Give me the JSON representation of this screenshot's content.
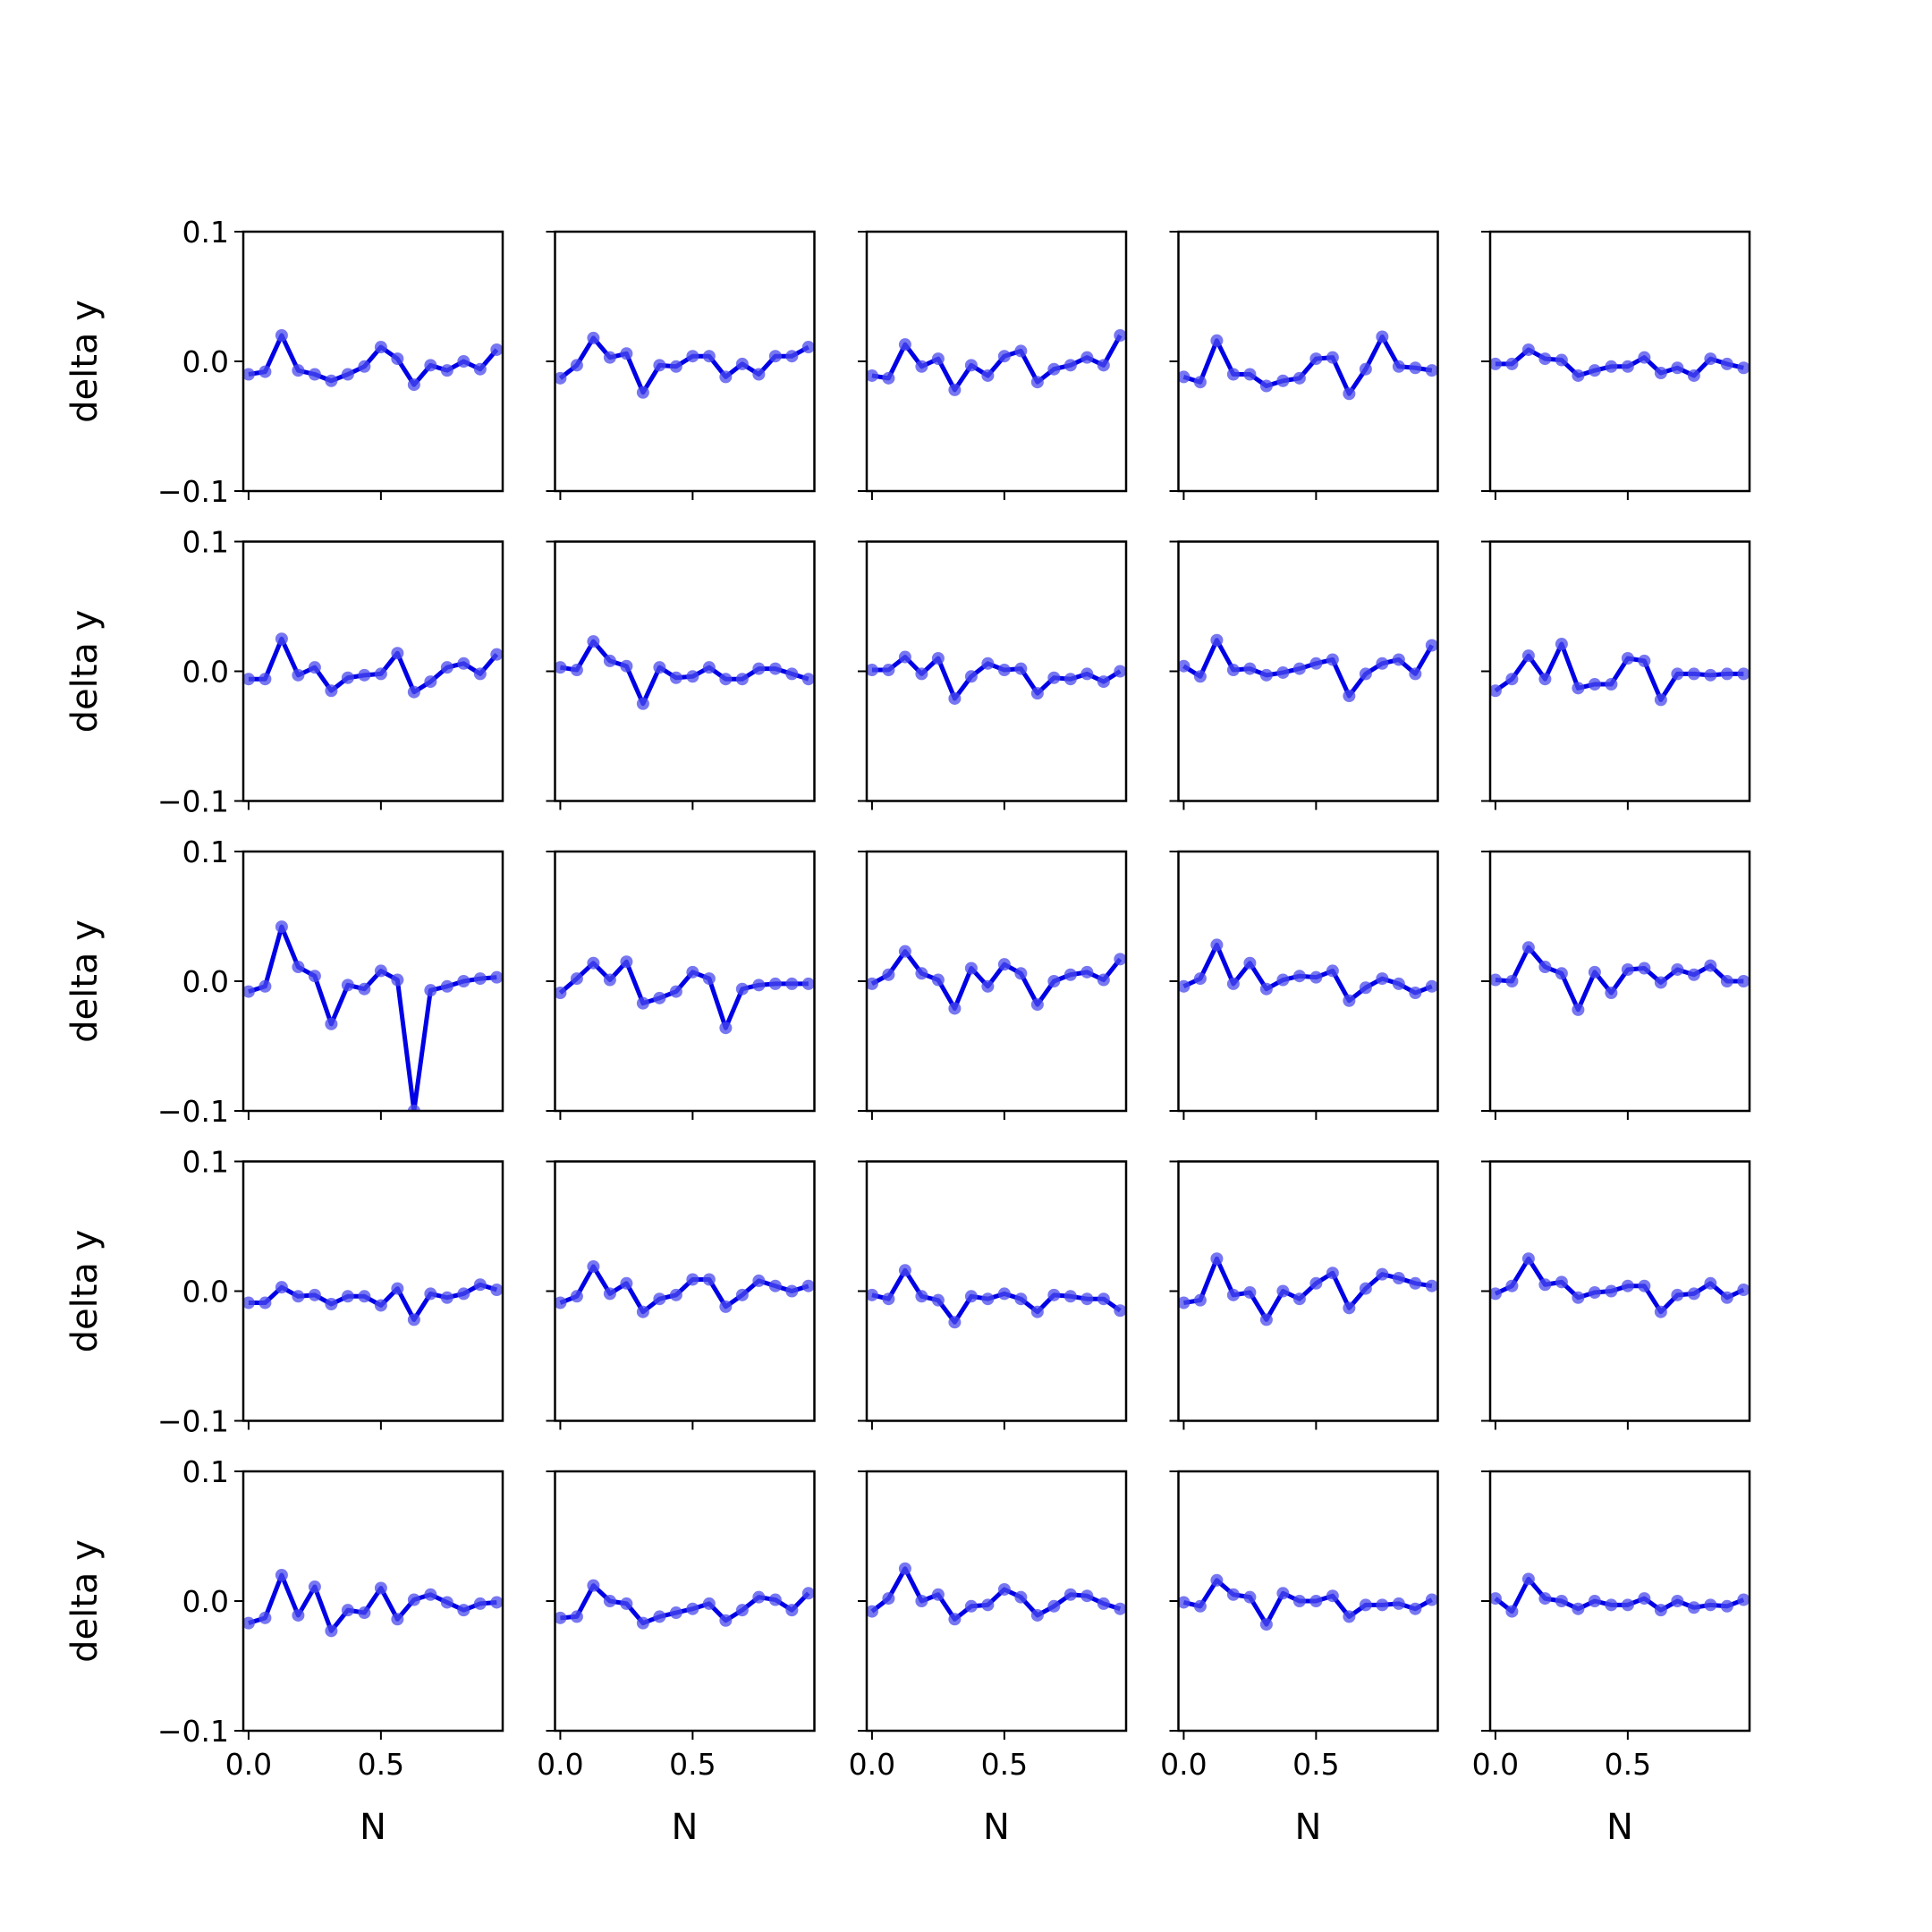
{
  "figure": {
    "rows": 5,
    "cols": 5,
    "line_color": "#0000e6",
    "marker_color": "#4a4aec"
  },
  "chart_data": [
    {
      "type": "line",
      "panel": "r1c1",
      "xlabel": "",
      "ylabel": "delta y",
      "xlim": [
        -0.02,
        0.96
      ],
      "ylim": [
        -0.1,
        0.1
      ],
      "x": [
        0.0,
        0.0625,
        0.125,
        0.1875,
        0.25,
        0.3125,
        0.375,
        0.4375,
        0.5,
        0.5625,
        0.625,
        0.6875,
        0.75,
        0.8125,
        0.875,
        0.9375
      ],
      "values": [
        -0.01,
        -0.008,
        0.02,
        -0.007,
        -0.01,
        -0.015,
        -0.01,
        -0.004,
        0.011,
        0.002,
        -0.018,
        -0.003,
        -0.007,
        0.0,
        -0.006,
        0.009
      ]
    },
    {
      "type": "line",
      "panel": "r1c2",
      "xlabel": "",
      "ylabel": "",
      "xlim": [
        -0.02,
        0.96
      ],
      "ylim": [
        -0.1,
        0.1
      ],
      "x": [
        0.0,
        0.0625,
        0.125,
        0.1875,
        0.25,
        0.3125,
        0.375,
        0.4375,
        0.5,
        0.5625,
        0.625,
        0.6875,
        0.75,
        0.8125,
        0.875,
        0.9375
      ],
      "values": [
        -0.013,
        -0.003,
        0.018,
        0.003,
        0.006,
        -0.024,
        -0.003,
        -0.004,
        0.004,
        0.004,
        -0.012,
        -0.002,
        -0.01,
        0.004,
        0.004,
        0.011
      ]
    },
    {
      "type": "line",
      "panel": "r1c3",
      "xlabel": "",
      "ylabel": "",
      "xlim": [
        -0.02,
        0.96
      ],
      "ylim": [
        -0.1,
        0.1
      ],
      "x": [
        0.0,
        0.0625,
        0.125,
        0.1875,
        0.25,
        0.3125,
        0.375,
        0.4375,
        0.5,
        0.5625,
        0.625,
        0.6875,
        0.75,
        0.8125,
        0.875,
        0.9375
      ],
      "values": [
        -0.011,
        -0.013,
        0.013,
        -0.004,
        0.002,
        -0.022,
        -0.003,
        -0.011,
        0.004,
        0.008,
        -0.016,
        -0.006,
        -0.003,
        0.003,
        -0.003,
        0.02
      ]
    },
    {
      "type": "line",
      "panel": "r1c4",
      "xlabel": "",
      "ylabel": "",
      "xlim": [
        -0.02,
        0.96
      ],
      "ylim": [
        -0.1,
        0.1
      ],
      "x": [
        0.0,
        0.0625,
        0.125,
        0.1875,
        0.25,
        0.3125,
        0.375,
        0.4375,
        0.5,
        0.5625,
        0.625,
        0.6875,
        0.75,
        0.8125,
        0.875,
        0.9375
      ],
      "values": [
        -0.012,
        -0.016,
        0.016,
        -0.01,
        -0.01,
        -0.019,
        -0.015,
        -0.013,
        0.002,
        0.003,
        -0.025,
        -0.006,
        0.019,
        -0.004,
        -0.005,
        -0.007
      ]
    },
    {
      "type": "line",
      "panel": "r1c5",
      "xlabel": "",
      "ylabel": "",
      "xlim": [
        -0.02,
        0.96
      ],
      "ylim": [
        -0.1,
        0.1
      ],
      "x": [
        0.0,
        0.0625,
        0.125,
        0.1875,
        0.25,
        0.3125,
        0.375,
        0.4375,
        0.5,
        0.5625,
        0.625,
        0.6875,
        0.75,
        0.8125,
        0.875,
        0.9375
      ],
      "values": [
        -0.002,
        -0.002,
        0.009,
        0.002,
        0.001,
        -0.011,
        -0.007,
        -0.004,
        -0.004,
        0.003,
        -0.009,
        -0.005,
        -0.011,
        0.002,
        -0.002,
        -0.005
      ]
    },
    {
      "type": "line",
      "panel": "r2c1",
      "xlabel": "",
      "ylabel": "delta y",
      "xlim": [
        -0.02,
        0.96
      ],
      "ylim": [
        -0.1,
        0.1
      ],
      "x": [
        0.0,
        0.0625,
        0.125,
        0.1875,
        0.25,
        0.3125,
        0.375,
        0.4375,
        0.5,
        0.5625,
        0.625,
        0.6875,
        0.75,
        0.8125,
        0.875,
        0.9375
      ],
      "values": [
        -0.006,
        -0.006,
        0.025,
        -0.003,
        0.003,
        -0.015,
        -0.005,
        -0.003,
        -0.002,
        0.014,
        -0.016,
        -0.008,
        0.003,
        0.006,
        -0.002,
        0.013
      ]
    },
    {
      "type": "line",
      "panel": "r2c2",
      "xlabel": "",
      "ylabel": "",
      "xlim": [
        -0.02,
        0.96
      ],
      "ylim": [
        -0.1,
        0.1
      ],
      "x": [
        0.0,
        0.0625,
        0.125,
        0.1875,
        0.25,
        0.3125,
        0.375,
        0.4375,
        0.5,
        0.5625,
        0.625,
        0.6875,
        0.75,
        0.8125,
        0.875,
        0.9375
      ],
      "values": [
        0.003,
        0.001,
        0.023,
        0.008,
        0.004,
        -0.025,
        0.003,
        -0.005,
        -0.004,
        0.003,
        -0.006,
        -0.006,
        0.002,
        0.002,
        -0.002,
        -0.006
      ]
    },
    {
      "type": "line",
      "panel": "r2c3",
      "xlabel": "",
      "ylabel": "",
      "xlim": [
        -0.02,
        0.96
      ],
      "ylim": [
        -0.1,
        0.1
      ],
      "x": [
        0.0,
        0.0625,
        0.125,
        0.1875,
        0.25,
        0.3125,
        0.375,
        0.4375,
        0.5,
        0.5625,
        0.625,
        0.6875,
        0.75,
        0.8125,
        0.875,
        0.9375
      ],
      "values": [
        0.001,
        0.001,
        0.011,
        -0.002,
        0.01,
        -0.021,
        -0.004,
        0.006,
        0.001,
        0.002,
        -0.017,
        -0.005,
        -0.006,
        -0.002,
        -0.008,
        0.0
      ]
    },
    {
      "type": "line",
      "panel": "r2c4",
      "xlabel": "",
      "ylabel": "",
      "xlim": [
        -0.02,
        0.96
      ],
      "ylim": [
        -0.1,
        0.1
      ],
      "x": [
        0.0,
        0.0625,
        0.125,
        0.1875,
        0.25,
        0.3125,
        0.375,
        0.4375,
        0.5,
        0.5625,
        0.625,
        0.6875,
        0.75,
        0.8125,
        0.875,
        0.9375
      ],
      "values": [
        0.004,
        -0.004,
        0.024,
        0.001,
        0.002,
        -0.003,
        -0.001,
        0.002,
        0.006,
        0.009,
        -0.019,
        -0.002,
        0.006,
        0.009,
        -0.002,
        0.02
      ]
    },
    {
      "type": "line",
      "panel": "r2c5",
      "xlabel": "",
      "ylabel": "",
      "xlim": [
        -0.02,
        0.96
      ],
      "ylim": [
        -0.1,
        0.1
      ],
      "x": [
        0.0,
        0.0625,
        0.125,
        0.1875,
        0.25,
        0.3125,
        0.375,
        0.4375,
        0.5,
        0.5625,
        0.625,
        0.6875,
        0.75,
        0.8125,
        0.875,
        0.9375
      ],
      "values": [
        -0.015,
        -0.006,
        0.012,
        -0.006,
        0.021,
        -0.013,
        -0.01,
        -0.01,
        0.01,
        0.008,
        -0.022,
        -0.002,
        -0.002,
        -0.003,
        -0.002,
        -0.002
      ]
    },
    {
      "type": "line",
      "panel": "r3c1",
      "xlabel": "",
      "ylabel": "delta y",
      "xlim": [
        -0.02,
        0.96
      ],
      "ylim": [
        -0.1,
        0.1
      ],
      "x": [
        0.0,
        0.0625,
        0.125,
        0.1875,
        0.25,
        0.3125,
        0.375,
        0.4375,
        0.5,
        0.5625,
        0.625,
        0.6875,
        0.75,
        0.8125,
        0.875,
        0.9375
      ],
      "values": [
        -0.008,
        -0.004,
        0.042,
        0.011,
        0.004,
        -0.033,
        -0.003,
        -0.006,
        0.008,
        0.001,
        -0.1,
        -0.007,
        -0.004,
        0.0,
        0.002,
        0.003
      ]
    },
    {
      "type": "line",
      "panel": "r3c2",
      "xlabel": "",
      "ylabel": "",
      "xlim": [
        -0.02,
        0.96
      ],
      "ylim": [
        -0.1,
        0.1
      ],
      "x": [
        0.0,
        0.0625,
        0.125,
        0.1875,
        0.25,
        0.3125,
        0.375,
        0.4375,
        0.5,
        0.5625,
        0.625,
        0.6875,
        0.75,
        0.8125,
        0.875,
        0.9375
      ],
      "values": [
        -0.009,
        0.002,
        0.014,
        0.001,
        0.015,
        -0.017,
        -0.013,
        -0.008,
        0.007,
        0.002,
        -0.036,
        -0.006,
        -0.003,
        -0.002,
        -0.002,
        -0.002
      ]
    },
    {
      "type": "line",
      "panel": "r3c3",
      "xlabel": "",
      "ylabel": "",
      "xlim": [
        -0.02,
        0.96
      ],
      "ylim": [
        -0.1,
        0.1
      ],
      "x": [
        0.0,
        0.0625,
        0.125,
        0.1875,
        0.25,
        0.3125,
        0.375,
        0.4375,
        0.5,
        0.5625,
        0.625,
        0.6875,
        0.75,
        0.8125,
        0.875,
        0.9375
      ],
      "values": [
        -0.002,
        0.005,
        0.023,
        0.006,
        0.001,
        -0.021,
        0.01,
        -0.004,
        0.013,
        0.006,
        -0.018,
        0.0,
        0.005,
        0.007,
        0.001,
        0.017
      ]
    },
    {
      "type": "line",
      "panel": "r3c4",
      "xlabel": "",
      "ylabel": "",
      "xlim": [
        -0.02,
        0.96
      ],
      "ylim": [
        -0.1,
        0.1
      ],
      "x": [
        0.0,
        0.0625,
        0.125,
        0.1875,
        0.25,
        0.3125,
        0.375,
        0.4375,
        0.5,
        0.5625,
        0.625,
        0.6875,
        0.75,
        0.8125,
        0.875,
        0.9375
      ],
      "values": [
        -0.004,
        0.002,
        0.028,
        -0.002,
        0.014,
        -0.006,
        0.001,
        0.004,
        0.003,
        0.008,
        -0.015,
        -0.005,
        0.002,
        -0.002,
        -0.009,
        -0.004
      ]
    },
    {
      "type": "line",
      "panel": "r3c5",
      "xlabel": "",
      "ylabel": "",
      "xlim": [
        -0.02,
        0.96
      ],
      "ylim": [
        -0.1,
        0.1
      ],
      "x": [
        0.0,
        0.0625,
        0.125,
        0.1875,
        0.25,
        0.3125,
        0.375,
        0.4375,
        0.5,
        0.5625,
        0.625,
        0.6875,
        0.75,
        0.8125,
        0.875,
        0.9375
      ],
      "values": [
        0.001,
        0.0,
        0.026,
        0.011,
        0.006,
        -0.022,
        0.007,
        -0.009,
        0.009,
        0.01,
        -0.001,
        0.009,
        0.005,
        0.012,
        0.0,
        0.0
      ]
    },
    {
      "type": "line",
      "panel": "r4c1",
      "xlabel": "",
      "ylabel": "delta y",
      "xlim": [
        -0.02,
        0.96
      ],
      "ylim": [
        -0.1,
        0.1
      ],
      "x": [
        0.0,
        0.0625,
        0.125,
        0.1875,
        0.25,
        0.3125,
        0.375,
        0.4375,
        0.5,
        0.5625,
        0.625,
        0.6875,
        0.75,
        0.8125,
        0.875,
        0.9375
      ],
      "values": [
        -0.009,
        -0.009,
        0.003,
        -0.004,
        -0.003,
        -0.01,
        -0.004,
        -0.004,
        -0.011,
        0.002,
        -0.022,
        -0.002,
        -0.005,
        -0.002,
        0.005,
        0.001
      ]
    },
    {
      "type": "line",
      "panel": "r4c2",
      "xlabel": "",
      "ylabel": "",
      "xlim": [
        -0.02,
        0.96
      ],
      "ylim": [
        -0.1,
        0.1
      ],
      "x": [
        0.0,
        0.0625,
        0.125,
        0.1875,
        0.25,
        0.3125,
        0.375,
        0.4375,
        0.5,
        0.5625,
        0.625,
        0.6875,
        0.75,
        0.8125,
        0.875,
        0.9375
      ],
      "values": [
        -0.009,
        -0.004,
        0.019,
        -0.002,
        0.006,
        -0.016,
        -0.006,
        -0.003,
        0.009,
        0.009,
        -0.012,
        -0.003,
        0.008,
        0.004,
        0.0,
        0.004
      ]
    },
    {
      "type": "line",
      "panel": "r4c3",
      "xlabel": "",
      "ylabel": "",
      "xlim": [
        -0.02,
        0.96
      ],
      "ylim": [
        -0.1,
        0.1
      ],
      "x": [
        0.0,
        0.0625,
        0.125,
        0.1875,
        0.25,
        0.3125,
        0.375,
        0.4375,
        0.5,
        0.5625,
        0.625,
        0.6875,
        0.75,
        0.8125,
        0.875,
        0.9375
      ],
      "values": [
        -0.003,
        -0.006,
        0.016,
        -0.004,
        -0.007,
        -0.024,
        -0.004,
        -0.006,
        -0.002,
        -0.006,
        -0.016,
        -0.003,
        -0.004,
        -0.006,
        -0.006,
        -0.015
      ]
    },
    {
      "type": "line",
      "panel": "r4c4",
      "xlabel": "",
      "ylabel": "",
      "xlim": [
        -0.02,
        0.96
      ],
      "ylim": [
        -0.1,
        0.1
      ],
      "x": [
        0.0,
        0.0625,
        0.125,
        0.1875,
        0.25,
        0.3125,
        0.375,
        0.4375,
        0.5,
        0.5625,
        0.625,
        0.6875,
        0.75,
        0.8125,
        0.875,
        0.9375
      ],
      "values": [
        -0.009,
        -0.007,
        0.025,
        -0.003,
        -0.001,
        -0.022,
        0.0,
        -0.006,
        0.006,
        0.014,
        -0.013,
        0.002,
        0.013,
        0.01,
        0.006,
        0.004
      ]
    },
    {
      "type": "line",
      "panel": "r4c5",
      "xlabel": "",
      "ylabel": "",
      "xlim": [
        -0.02,
        0.96
      ],
      "ylim": [
        -0.1,
        0.1
      ],
      "x": [
        0.0,
        0.0625,
        0.125,
        0.1875,
        0.25,
        0.3125,
        0.375,
        0.4375,
        0.5,
        0.5625,
        0.625,
        0.6875,
        0.75,
        0.8125,
        0.875,
        0.9375
      ],
      "values": [
        -0.002,
        0.004,
        0.025,
        0.005,
        0.007,
        -0.005,
        -0.001,
        0.0,
        0.004,
        0.004,
        -0.016,
        -0.003,
        -0.002,
        0.006,
        -0.005,
        0.001
      ]
    },
    {
      "type": "line",
      "panel": "r5c1",
      "xlabel": "N",
      "ylabel": "delta y",
      "xlim": [
        -0.02,
        0.96
      ],
      "ylim": [
        -0.1,
        0.1
      ],
      "x": [
        0.0,
        0.0625,
        0.125,
        0.1875,
        0.25,
        0.3125,
        0.375,
        0.4375,
        0.5,
        0.5625,
        0.625,
        0.6875,
        0.75,
        0.8125,
        0.875,
        0.9375
      ],
      "values": [
        -0.017,
        -0.013,
        0.02,
        -0.011,
        0.011,
        -0.023,
        -0.007,
        -0.009,
        0.01,
        -0.014,
        0.001,
        0.005,
        -0.001,
        -0.007,
        -0.002,
        -0.001
      ]
    },
    {
      "type": "line",
      "panel": "r5c2",
      "xlabel": "N",
      "ylabel": "",
      "xlim": [
        -0.02,
        0.96
      ],
      "ylim": [
        -0.1,
        0.1
      ],
      "x": [
        0.0,
        0.0625,
        0.125,
        0.1875,
        0.25,
        0.3125,
        0.375,
        0.4375,
        0.5,
        0.5625,
        0.625,
        0.6875,
        0.75,
        0.8125,
        0.875,
        0.9375
      ],
      "values": [
        -0.013,
        -0.012,
        0.012,
        0.0,
        -0.002,
        -0.017,
        -0.012,
        -0.009,
        -0.006,
        -0.002,
        -0.015,
        -0.007,
        0.003,
        0.001,
        -0.007,
        0.006
      ]
    },
    {
      "type": "line",
      "panel": "r5c3",
      "xlabel": "N",
      "ylabel": "",
      "xlim": [
        -0.02,
        0.96
      ],
      "ylim": [
        -0.1,
        0.1
      ],
      "x": [
        0.0,
        0.0625,
        0.125,
        0.1875,
        0.25,
        0.3125,
        0.375,
        0.4375,
        0.5,
        0.5625,
        0.625,
        0.6875,
        0.75,
        0.8125,
        0.875,
        0.9375
      ],
      "values": [
        -0.008,
        0.002,
        0.025,
        0.0,
        0.005,
        -0.014,
        -0.004,
        -0.003,
        0.009,
        0.003,
        -0.011,
        -0.004,
        0.005,
        0.004,
        -0.002,
        -0.006
      ]
    },
    {
      "type": "line",
      "panel": "r5c4",
      "xlabel": "N",
      "ylabel": "",
      "xlim": [
        -0.02,
        0.96
      ],
      "ylim": [
        -0.1,
        0.1
      ],
      "x": [
        0.0,
        0.0625,
        0.125,
        0.1875,
        0.25,
        0.3125,
        0.375,
        0.4375,
        0.5,
        0.5625,
        0.625,
        0.6875,
        0.75,
        0.8125,
        0.875,
        0.9375
      ],
      "values": [
        -0.001,
        -0.004,
        0.016,
        0.005,
        0.003,
        -0.018,
        0.006,
        0.0,
        0.0,
        0.004,
        -0.012,
        -0.003,
        -0.003,
        -0.002,
        -0.006,
        0.001
      ]
    },
    {
      "type": "line",
      "panel": "r5c5",
      "xlabel": "N",
      "ylabel": "",
      "xlim": [
        -0.02,
        0.96
      ],
      "ylim": [
        -0.1,
        0.1
      ],
      "x": [
        0.0,
        0.0625,
        0.125,
        0.1875,
        0.25,
        0.3125,
        0.375,
        0.4375,
        0.5,
        0.5625,
        0.625,
        0.6875,
        0.75,
        0.8125,
        0.875,
        0.9375
      ],
      "values": [
        0.002,
        -0.008,
        0.017,
        0.002,
        0.0,
        -0.006,
        0.0,
        -0.003,
        -0.003,
        0.002,
        -0.007,
        0.0,
        -0.005,
        -0.003,
        -0.004,
        0.001
      ]
    }
  ],
  "axes": {
    "y_ticks": [
      -0.1,
      0.0,
      0.1
    ],
    "y_tick_labels": [
      "−0.1",
      "0.0",
      "0.1"
    ],
    "x_ticks": [
      0.0,
      0.5
    ],
    "x_tick_labels": [
      "0.0",
      "0.5"
    ]
  }
}
